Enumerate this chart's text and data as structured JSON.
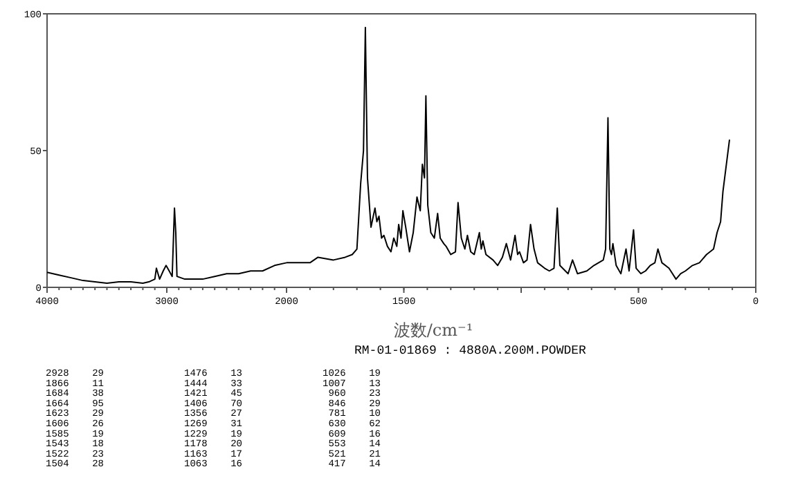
{
  "chart_data": [
    {
      "type": "line",
      "xlim": [
        4000,
        2000
      ],
      "xticks": [
        4000,
        3000
      ],
      "ylim": [
        0,
        100
      ],
      "yticks": [
        0,
        50,
        100
      ],
      "grid": false,
      "marker": "none",
      "line_style": "solid",
      "series": [
        {
          "color": "#000000",
          "x": [
            4000,
            3900,
            3800,
            3700,
            3600,
            3500,
            3400,
            3300,
            3200,
            3150,
            3100,
            3087,
            3060,
            3030,
            3006,
            2980,
            2955,
            2936,
            2925,
            2915,
            2850,
            2700,
            2600,
            2500,
            2400,
            2300,
            2200,
            2100,
            2000
          ],
          "values": [
            5.5,
            4.5,
            3.5,
            2.5,
            2,
            1.5,
            2,
            2,
            1.5,
            2,
            3,
            7,
            3,
            6,
            8,
            6,
            4,
            29,
            20,
            4,
            3,
            3,
            4,
            5,
            5,
            6,
            6,
            8,
            9
          ]
        }
      ]
    },
    {
      "type": "line",
      "xlabel": "波数/cm⁻¹",
      "xlim": [
        2000,
        0
      ],
      "xticks": [
        2000,
        1500,
        {
          "value": 1000,
          "label": null
        },
        500,
        0
      ],
      "ylim": [
        0,
        100
      ],
      "tick_labels": "x",
      "grid": false,
      "marker": "none",
      "line_style": "solid",
      "series": [
        {
          "color": "#000000",
          "x": [
            2000,
            1900,
            1866,
            1800,
            1750,
            1720,
            1700,
            1684,
            1672,
            1664,
            1655,
            1640,
            1623,
            1615,
            1606,
            1595,
            1585,
            1570,
            1555,
            1543,
            1530,
            1522,
            1512,
            1504,
            1492,
            1476,
            1460,
            1444,
            1430,
            1421,
            1412,
            1406,
            1398,
            1385,
            1370,
            1356,
            1345,
            1330,
            1320,
            1300,
            1280,
            1269,
            1255,
            1240,
            1229,
            1215,
            1200,
            1178,
            1170,
            1163,
            1150,
            1120,
            1100,
            1080,
            1063,
            1045,
            1026,
            1015,
            1007,
            990,
            975,
            960,
            945,
            930,
            900,
            880,
            860,
            846,
            835,
            800,
            781,
            760,
            720,
            690,
            650,
            640,
            630,
            622,
            615,
            609,
            595,
            575,
            553,
            540,
            521,
            510,
            490,
            470,
            450,
            430,
            417,
            400,
            370,
            340,
            320,
            300,
            270,
            240,
            210,
            180,
            165,
            150,
            140,
            112
          ],
          "values": [
            9,
            9,
            11,
            10,
            11,
            12,
            14,
            38,
            50,
            95,
            40,
            22,
            29,
            24,
            26,
            18,
            19,
            15,
            13,
            18,
            15,
            23,
            18,
            28,
            22,
            13,
            20,
            33,
            28,
            45,
            40,
            70,
            30,
            20,
            18,
            27,
            18,
            16,
            15,
            12,
            13,
            31,
            18,
            14,
            19,
            13,
            12,
            20,
            14,
            17,
            12,
            10,
            8,
            11,
            16,
            10,
            19,
            12,
            13,
            9,
            10,
            23,
            14,
            9,
            7,
            6,
            7,
            29,
            8,
            5,
            10,
            5,
            6,
            8,
            10,
            14,
            62,
            14,
            12,
            16,
            8,
            5,
            14,
            6,
            21,
            7,
            5,
            6,
            8,
            9,
            14,
            9,
            7,
            3,
            5,
            6,
            8,
            9,
            12,
            14,
            20,
            24,
            35,
            54
          ]
        }
      ],
      "annotations": [
        "RM-01-01869 : 4880A.200M.POWDER",
        "2928    29",
        "1866    11",
        "1684    38",
        "1664    95",
        "1623    29",
        "1606    26",
        "1585    19",
        "1543    18",
        "1522    23",
        "1504    28",
        "1476    13",
        "1444    33",
        "1421    45",
        "1406    70",
        "1356    27",
        "1269    31",
        "1229    19",
        "1178    20",
        "1163    17",
        "1063    16",
        "1026    19",
        "1007    13",
        " 960    23",
        " 846    29",
        " 781    10",
        " 630    62",
        " 609    16",
        " 553    14",
        " 521    21",
        " 417    14"
      ]
    }
  ]
}
